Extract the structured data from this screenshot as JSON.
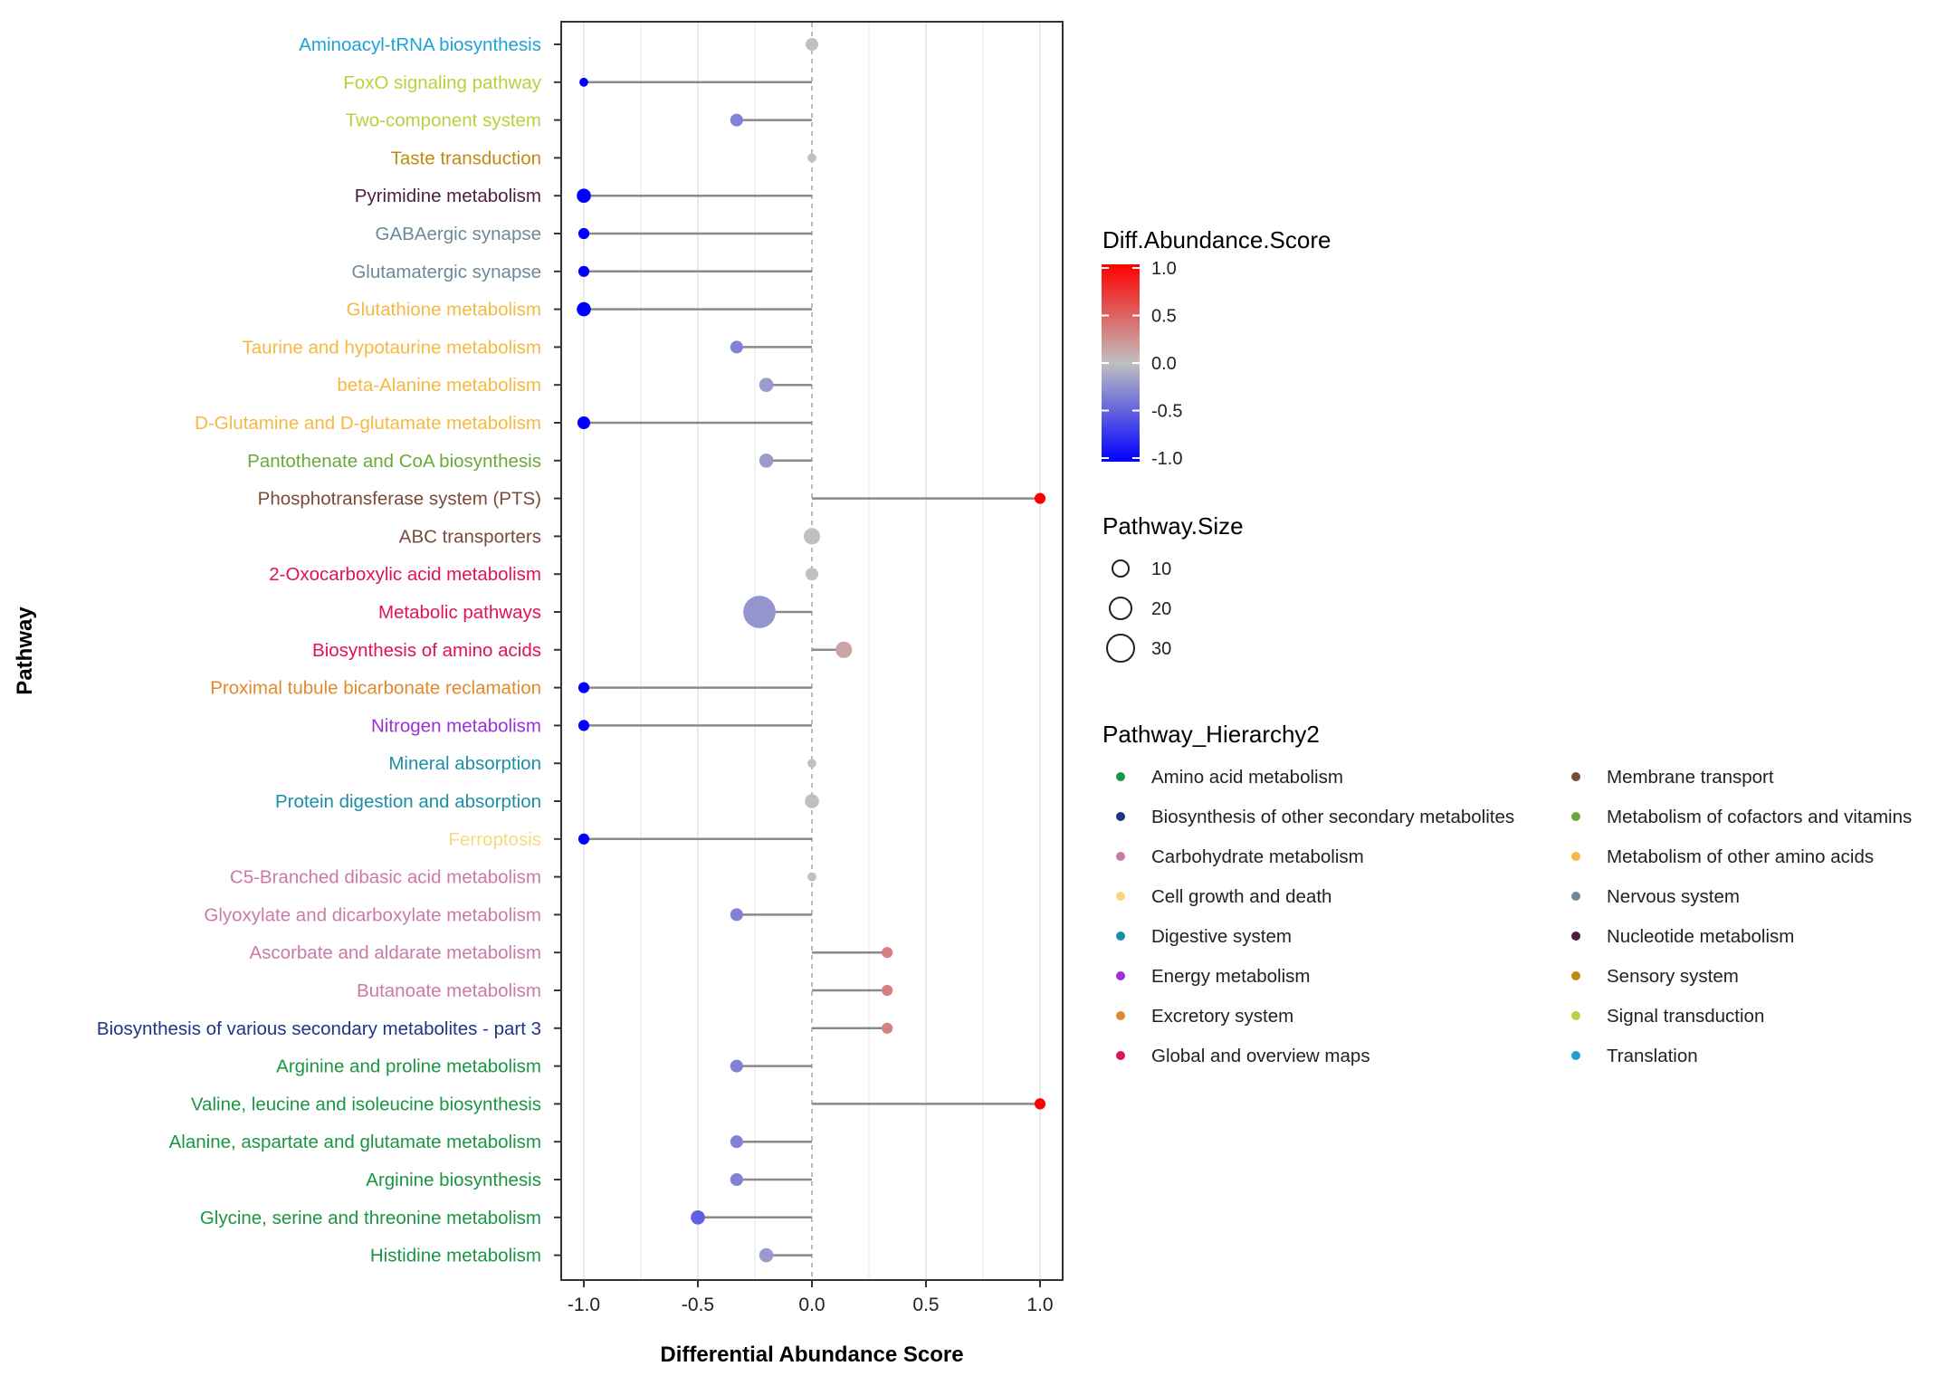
{
  "chart_data": {
    "type": "lollipop",
    "xlabel": "Differential Abundance Score",
    "ylabel": "Pathway",
    "xlim": [
      -1.1,
      1.1
    ],
    "xticks": [
      -1.0,
      -0.5,
      0.0,
      0.5,
      1.0
    ],
    "xtick_labels": [
      "-1.0",
      "-0.5",
      "0.0",
      "0.5",
      "1.0"
    ],
    "grid": "vertical",
    "pathways": [
      {
        "name": "Aminoacyl-tRNA biosynthesis",
        "score": 0.0,
        "size": 3,
        "hierarchy": "Translation"
      },
      {
        "name": "FoxO signaling pathway",
        "score": -1.0,
        "size": 1,
        "hierarchy": "Signal transduction"
      },
      {
        "name": "Two-component system",
        "score": -0.33,
        "size": 3,
        "hierarchy": "Signal transduction"
      },
      {
        "name": "Taste transduction",
        "score": 0.0,
        "size": 1,
        "hierarchy": "Sensory system"
      },
      {
        "name": "Pyrimidine metabolism",
        "score": -1.0,
        "size": 4,
        "hierarchy": "Nucleotide metabolism"
      },
      {
        "name": "GABAergic synapse",
        "score": -1.0,
        "size": 2,
        "hierarchy": "Nervous system"
      },
      {
        "name": "Glutamatergic synapse",
        "score": -1.0,
        "size": 2,
        "hierarchy": "Nervous system"
      },
      {
        "name": "Glutathione metabolism",
        "score": -1.0,
        "size": 4,
        "hierarchy": "Metabolism of other amino acids"
      },
      {
        "name": "Taurine and hypotaurine metabolism",
        "score": -0.33,
        "size": 3,
        "hierarchy": "Metabolism of other amino acids"
      },
      {
        "name": "beta-Alanine metabolism",
        "score": -0.2,
        "size": 4,
        "hierarchy": "Metabolism of other amino acids"
      },
      {
        "name": "D-Glutamine and D-glutamate metabolism",
        "score": -1.0,
        "size": 3,
        "hierarchy": "Metabolism of other amino acids"
      },
      {
        "name": "Pantothenate and CoA biosynthesis",
        "score": -0.2,
        "size": 4,
        "hierarchy": "Metabolism of cofactors and vitamins"
      },
      {
        "name": "Phosphotransferase system (PTS)",
        "score": 1.0,
        "size": 2,
        "hierarchy": "Membrane transport"
      },
      {
        "name": "ABC transporters",
        "score": 0.0,
        "size": 6,
        "hierarchy": "Membrane transport"
      },
      {
        "name": "2-Oxocarboxylic acid metabolism",
        "score": 0.0,
        "size": 3,
        "hierarchy": "Global and overview maps"
      },
      {
        "name": "Metabolic pathways",
        "score": -0.23,
        "size": 30,
        "hierarchy": "Global and overview maps"
      },
      {
        "name": "Biosynthesis of amino acids",
        "score": 0.14,
        "size": 6,
        "hierarchy": "Global and overview maps"
      },
      {
        "name": "Proximal tubule bicarbonate reclamation",
        "score": -1.0,
        "size": 2,
        "hierarchy": "Excretory system"
      },
      {
        "name": "Nitrogen metabolism",
        "score": -1.0,
        "size": 2,
        "hierarchy": "Energy metabolism"
      },
      {
        "name": "Mineral absorption",
        "score": 0.0,
        "size": 1,
        "hierarchy": "Digestive system"
      },
      {
        "name": "Protein digestion and absorption",
        "score": 0.0,
        "size": 4,
        "hierarchy": "Digestive system"
      },
      {
        "name": "Ferroptosis",
        "score": -1.0,
        "size": 2,
        "hierarchy": "Cell growth and death"
      },
      {
        "name": "C5-Branched dibasic acid metabolism",
        "score": 0.0,
        "size": 1,
        "hierarchy": "Carbohydrate metabolism"
      },
      {
        "name": "Glyoxylate and dicarboxylate metabolism",
        "score": -0.33,
        "size": 3,
        "hierarchy": "Carbohydrate metabolism"
      },
      {
        "name": "Ascorbate and aldarate metabolism",
        "score": 0.33,
        "size": 2,
        "hierarchy": "Carbohydrate metabolism"
      },
      {
        "name": "Butanoate metabolism",
        "score": 0.33,
        "size": 2,
        "hierarchy": "Carbohydrate metabolism"
      },
      {
        "name": "Biosynthesis of various secondary metabolites - part 3",
        "score": 0.33,
        "size": 2,
        "hierarchy": "Biosynthesis of other secondary metabolites"
      },
      {
        "name": "Arginine and proline metabolism",
        "score": -0.33,
        "size": 3,
        "hierarchy": "Amino acid metabolism"
      },
      {
        "name": "Valine, leucine and isoleucine biosynthesis",
        "score": 1.0,
        "size": 2,
        "hierarchy": "Amino acid metabolism"
      },
      {
        "name": "Alanine, aspartate and glutamate metabolism",
        "score": -0.33,
        "size": 3,
        "hierarchy": "Amino acid metabolism"
      },
      {
        "name": "Arginine biosynthesis",
        "score": -0.33,
        "size": 3,
        "hierarchy": "Amino acid metabolism"
      },
      {
        "name": "Glycine, serine and threonine metabolism",
        "score": -0.5,
        "size": 4,
        "hierarchy": "Amino acid metabolism"
      },
      {
        "name": "Histidine metabolism",
        "score": -0.2,
        "size": 4,
        "hierarchy": "Amino acid metabolism"
      }
    ],
    "legend_color": {
      "title": "Diff.Abundance.Score",
      "ticks": [
        1.0,
        0.5,
        0.0,
        -0.5,
        -1.0
      ],
      "tick_labels": [
        "1.0",
        "0.5",
        "0.0",
        "-0.5",
        "-1.0"
      ],
      "low_color": "#0000ff",
      "mid_color": "#c0c0c0",
      "high_color": "#ff0000"
    },
    "legend_size": {
      "title": "Pathway.Size",
      "values": [
        10,
        20,
        30
      ],
      "labels": [
        "10",
        "20",
        "30"
      ]
    },
    "legend_hierarchy": {
      "title": "Pathway_Hierarchy2",
      "items": [
        {
          "label": "Amino acid metabolism",
          "color": "#1a9641"
        },
        {
          "label": "Biosynthesis of other secondary metabolites",
          "color": "#1f3585"
        },
        {
          "label": "Carbohydrate metabolism",
          "color": "#cc79a7"
        },
        {
          "label": "Cell growth and death",
          "color": "#f9d77e"
        },
        {
          "label": "Digestive system",
          "color": "#1b8fa5"
        },
        {
          "label": "Energy metabolism",
          "color": "#9b30d9"
        },
        {
          "label": "Excretory system",
          "color": "#e08a2c"
        },
        {
          "label": "Global and overview maps",
          "color": "#e0115f"
        },
        {
          "label": "Membrane transport",
          "color": "#7a4a3a"
        },
        {
          "label": "Metabolism of cofactors and vitamins",
          "color": "#6aaa3a"
        },
        {
          "label": "Metabolism of other amino acids",
          "color": "#f5b942"
        },
        {
          "label": "Nervous system",
          "color": "#6b8a9a"
        },
        {
          "label": "Nucleotide metabolism",
          "color": "#4b1d3f"
        },
        {
          "label": "Sensory system",
          "color": "#c08a10"
        },
        {
          "label": "Signal transduction",
          "color": "#b5d33d"
        },
        {
          "label": "Translation",
          "color": "#1ea2d6"
        }
      ]
    }
  }
}
